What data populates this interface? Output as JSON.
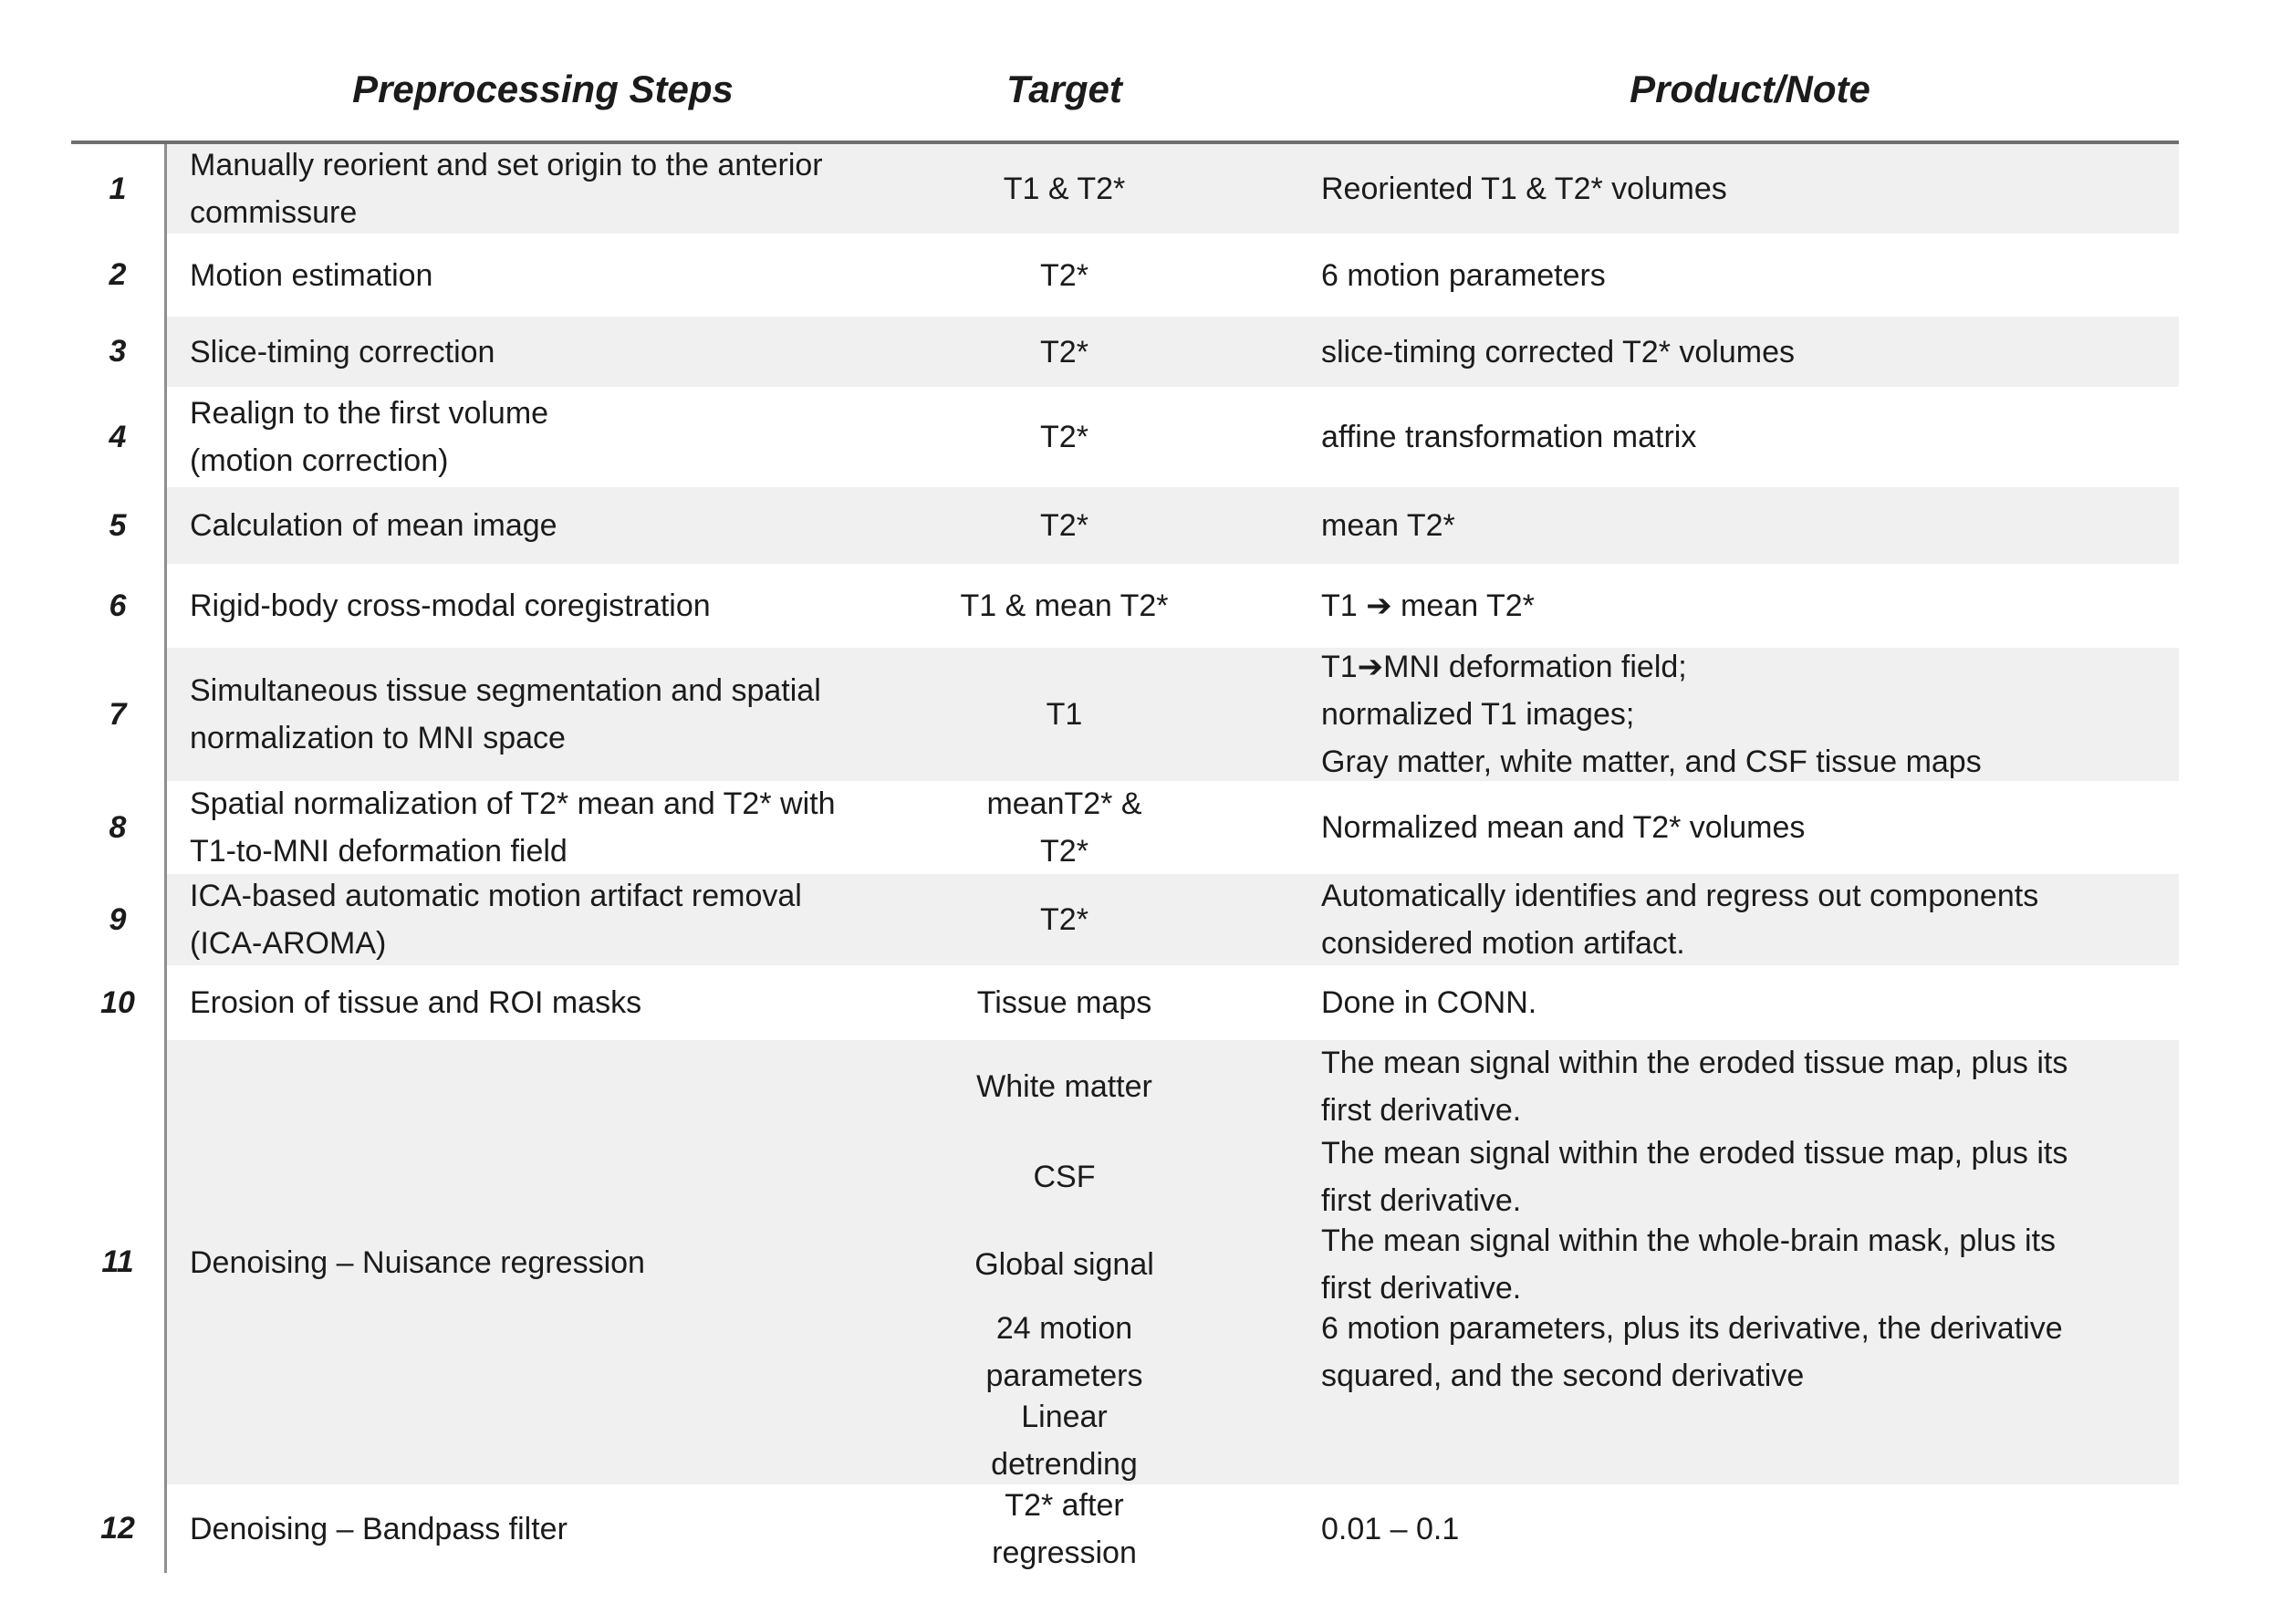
{
  "table": {
    "headers": {
      "steps": "Preprocessing Steps",
      "target": "Target",
      "product": "Product/Note"
    },
    "rows": [
      {
        "num": "1",
        "step": "Manually reorient and set origin to the anterior\ncommissure",
        "target": "T1 & T2*",
        "product": "Reoriented T1 & T2* volumes"
      },
      {
        "num": "2",
        "step": "Motion estimation",
        "target": "T2*",
        "product": "6 motion parameters"
      },
      {
        "num": "3",
        "step": "Slice-timing correction",
        "target": "T2*",
        "product": "slice-timing corrected T2* volumes"
      },
      {
        "num": "4",
        "step": "Realign to the first volume\n(motion correction)",
        "target": "T2*",
        "product": "affine transformation matrix"
      },
      {
        "num": "5",
        "step": "Calculation of mean image",
        "target": "T2*",
        "product": "mean T2*"
      },
      {
        "num": "6",
        "step": "Rigid-body cross-modal coregistration",
        "target": "T1 & mean T2*",
        "product": "T1 ➔ mean T2*"
      },
      {
        "num": "7",
        "step": "Simultaneous tissue segmentation and spatial\nnormalization to MNI space",
        "target": "T1",
        "product": "T1➔MNI deformation field;\nnormalized T1 images;\nGray matter, white matter, and CSF tissue maps"
      },
      {
        "num": "8",
        "step": "Spatial normalization of T2* mean and T2* with\nT1-to-MNI deformation field",
        "target": "meanT2* &\nT2*",
        "product": "Normalized mean and T2* volumes"
      },
      {
        "num": "9",
        "step": "ICA-based automatic motion artifact removal\n(ICA-AROMA)",
        "target": "T2*",
        "product": "Automatically identifies and regress out components\nconsidered motion artifact."
      },
      {
        "num": "10",
        "step": "Erosion of tissue and ROI masks",
        "target": "Tissue maps",
        "product": "Done in CONN."
      },
      {
        "num": "11",
        "step": "Denoising – Nuisance regression",
        "subrows": [
          {
            "target": "White matter",
            "product": "The mean signal within the eroded tissue map, plus its\nfirst derivative."
          },
          {
            "target": "CSF",
            "product": "The mean signal within the eroded tissue map, plus its\nfirst derivative."
          },
          {
            "target": "Global signal",
            "product": "The mean signal within the whole-brain mask, plus its\nfirst derivative."
          },
          {
            "target": "24 motion\nparameters",
            "product": "6 motion parameters, plus its derivative, the derivative\nsquared, and the second derivative"
          },
          {
            "target": "Linear\ndetrending",
            "product": ""
          }
        ]
      },
      {
        "num": "12",
        "step": "Denoising – Bandpass filter",
        "target": "T2* after\nregression",
        "product": "0.01 – 0.1"
      }
    ],
    "colors": {
      "row_shade": "#f0f0f0",
      "header_rule": "#6f6f6f",
      "column_rule": "#8f8f8f",
      "text": "#1b1b1b"
    }
  }
}
